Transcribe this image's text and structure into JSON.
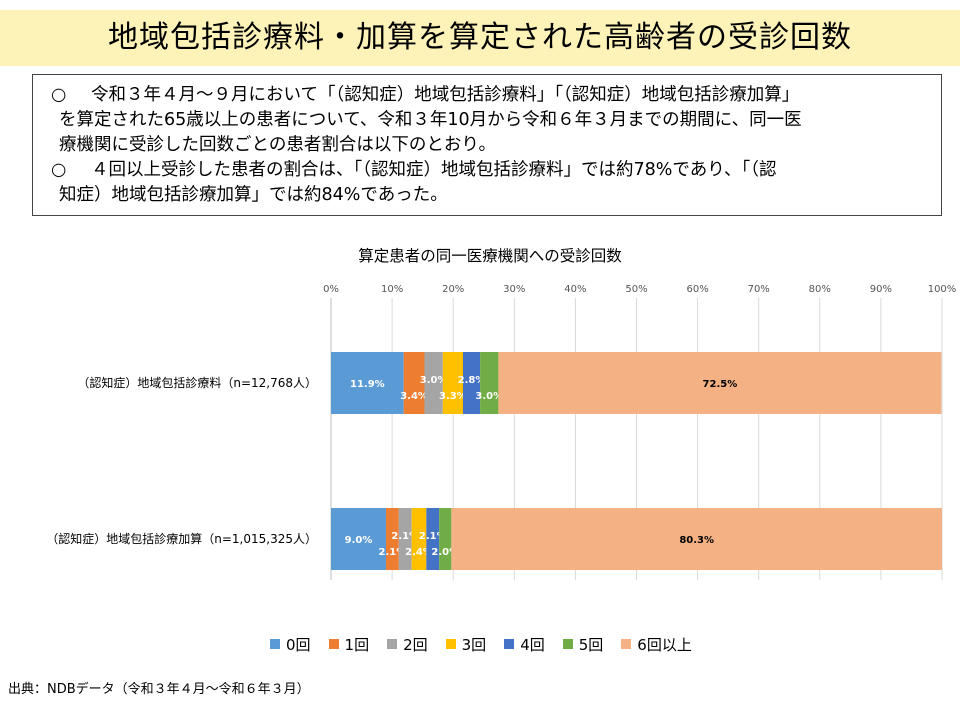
{
  "title": "地域包括診療料・加算を算定された高齢者の受診回数",
  "summary": {
    "item1": {
      "bullet": "○",
      "line1": "令和３年４月～９月において「（認知症）地域包括診療料」「（認知症）地域包括診療加算」",
      "line2": "を算定された65歳以上の患者について、令和３年10月から令和６年３月までの期間に、同一医",
      "line3": "療機関に受診した回数ごとの患者割合は以下のとおり。"
    },
    "item2": {
      "bullet": "○",
      "line1": "４回以上受診した患者の割合は、「（認知症）地域包括診療料」では約78%であり、「（認",
      "line2": "知症）地域包括診療加算」では約84%であった。"
    }
  },
  "chart_data": {
    "type": "bar",
    "orientation": "horizontal-stacked-100",
    "title": "算定患者の同一医療機関への受診回数",
    "xlim": [
      0,
      100
    ],
    "x_ticks": [
      "0%",
      "10%",
      "20%",
      "30%",
      "40%",
      "50%",
      "60%",
      "70%",
      "80%",
      "90%",
      "100%"
    ],
    "grid": true,
    "legend_position": "bottom",
    "categories": [
      "（認知症）地域包括診療料（n=12,768人）",
      "（認知症）地域包括診療加算（n=1,015,325人）"
    ],
    "series": [
      {
        "name": "0回",
        "color": "#5b9bd5",
        "values": [
          11.9,
          9.0
        ],
        "labels": [
          "11.9%",
          "9.0%"
        ]
      },
      {
        "name": "1回",
        "color": "#ed7d31",
        "values": [
          3.4,
          2.1
        ],
        "labels": [
          "3.4%",
          "2.1%"
        ]
      },
      {
        "name": "2回",
        "color": "#a5a5a5",
        "values": [
          3.0,
          2.1
        ],
        "labels": [
          "3.0%",
          "2.1%"
        ]
      },
      {
        "name": "3回",
        "color": "#ffc000",
        "values": [
          3.3,
          2.4
        ],
        "labels": [
          "3.3%",
          "2.4%"
        ]
      },
      {
        "name": "4回",
        "color": "#4472c4",
        "values": [
          2.8,
          2.1
        ],
        "labels": [
          "2.8%",
          "2.1%"
        ]
      },
      {
        "name": "5回",
        "color": "#70ad47",
        "values": [
          3.0,
          2.0
        ],
        "labels": [
          "3.0%",
          "2.0%"
        ]
      },
      {
        "name": "6回以上",
        "color": "#f4b183",
        "values": [
          72.5,
          80.3
        ],
        "labels": [
          "72.5%",
          "80.3%"
        ]
      }
    ]
  },
  "source": "出典：NDBデータ（令和３年４月～令和６年３月）"
}
